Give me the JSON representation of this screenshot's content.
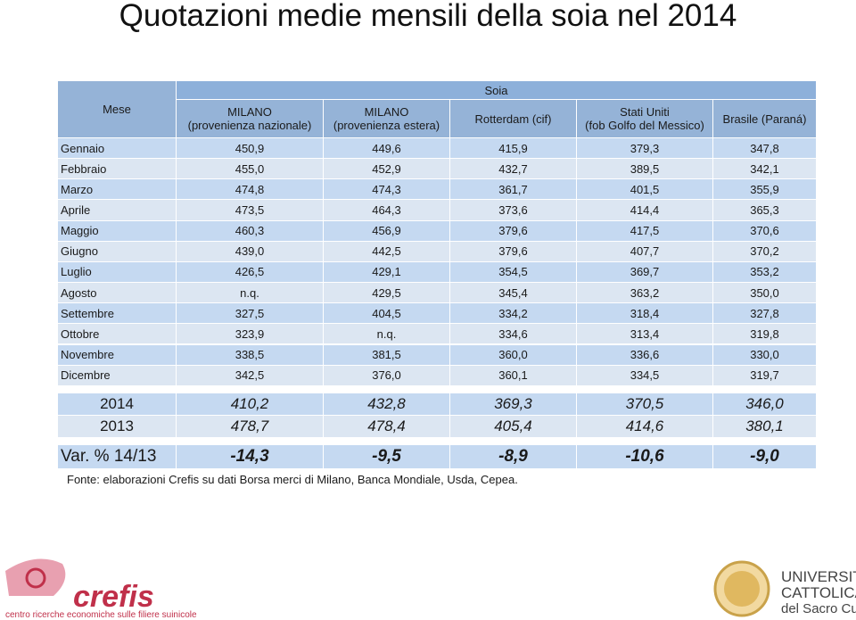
{
  "title": "Quotazioni medie mensili della soia nel 2014",
  "table": {
    "header": {
      "month": "Mese",
      "group": "Soia",
      "columns": [
        "MILANO\n(provenienza nazionale)",
        "MILANO\n(provenienza estera)",
        "Rotterdam (cif)",
        "Stati Uniti\n(fob Golfo del Messico)",
        "Brasile (Paraná)"
      ]
    },
    "rows": [
      [
        "Gennaio",
        "450,9",
        "449,6",
        "415,9",
        "379,3",
        "347,8"
      ],
      [
        "Febbraio",
        "455,0",
        "452,9",
        "432,7",
        "389,5",
        "342,1"
      ],
      [
        "Marzo",
        "474,8",
        "474,3",
        "361,7",
        "401,5",
        "355,9"
      ],
      [
        "Aprile",
        "473,5",
        "464,3",
        "373,6",
        "414,4",
        "365,3"
      ],
      [
        "Maggio",
        "460,3",
        "456,9",
        "379,6",
        "417,5",
        "370,6"
      ],
      [
        "Giugno",
        "439,0",
        "442,5",
        "379,6",
        "407,7",
        "370,2"
      ],
      [
        "Luglio",
        "426,5",
        "429,1",
        "354,5",
        "369,7",
        "353,2"
      ],
      [
        "Agosto",
        "n.q.",
        "429,5",
        "345,4",
        "363,2",
        "350,0"
      ],
      [
        "Settembre",
        "327,5",
        "404,5",
        "334,2",
        "318,4",
        "327,8"
      ],
      [
        "Ottobre",
        "323,9",
        "n.q.",
        "334,6",
        "313,4",
        "319,8"
      ],
      [
        "Novembre",
        "338,5",
        "381,5",
        "360,0",
        "336,6",
        "330,0"
      ],
      [
        "Dicembre",
        "342,5",
        "376,0",
        "360,1",
        "334,5",
        "319,7"
      ]
    ],
    "summary": [
      [
        "2014",
        "410,2",
        "432,8",
        "369,3",
        "370,5",
        "346,0"
      ],
      [
        "2013",
        "478,7",
        "478,4",
        "405,4",
        "414,6",
        "380,1"
      ]
    ],
    "variation": [
      "Var. % 14/13",
      "-14,3",
      "-9,5",
      "-8,9",
      "-10,6",
      "-9,0"
    ]
  },
  "source": "Fonte: elaborazioni Crefis su dati Borsa merci di Milano, Banca Mondiale, Usda, Cepea.",
  "logos": {
    "crefis": "crefis",
    "crefis_caption": "centro ricerche economiche sulle filiere suinicole",
    "university": [
      "UNIVERSITÀ",
      "CATTOLICA",
      "del Sacro Cuore"
    ]
  }
}
